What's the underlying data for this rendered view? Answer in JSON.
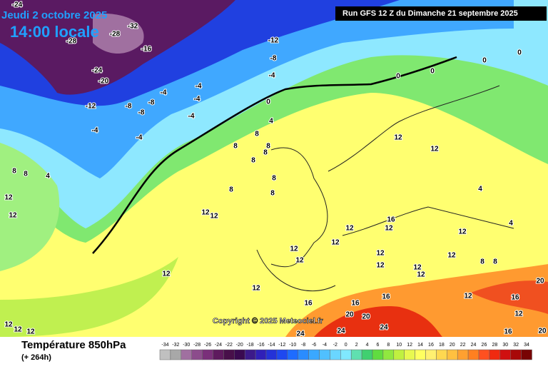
{
  "header": {
    "date": "Jeudi 2 octobre 2025",
    "time": "14:00 locale",
    "run": "Run GFS 12 Z du Dimanche 21 septembre 2025"
  },
  "copyright": "Copyright © 2025 Meteociel.fr",
  "footer": {
    "title": "Température 850hPa",
    "lead": "(+ 264h)"
  },
  "colorbar": {
    "ticks": [
      -34,
      -32,
      -30,
      -28,
      -26,
      -24,
      -22,
      -20,
      -18,
      -16,
      -14,
      -12,
      -10,
      -8,
      -6,
      -4,
      -2,
      0,
      2,
      4,
      6,
      8,
      10,
      12,
      14,
      16,
      18,
      20,
      22,
      24,
      26,
      28,
      30,
      32,
      34
    ],
    "colors": [
      "#c0c0c0",
      "#a8a8a8",
      "#a070a0",
      "#8c4c8c",
      "#7a2f7a",
      "#5e1a5e",
      "#48104a",
      "#3a0a50",
      "#3c1a8a",
      "#3020b8",
      "#2432d8",
      "#1e48f0",
      "#1e6cff",
      "#2a8cff",
      "#3aa8ff",
      "#50c0ff",
      "#6ad6ff",
      "#80e8ff",
      "#60e0b0",
      "#40d070",
      "#60dc40",
      "#90e840",
      "#c0f040",
      "#e8f850",
      "#ffff60",
      "#fff070",
      "#ffd850",
      "#ffc040",
      "#ffa030",
      "#ff8020",
      "#ff5020",
      "#f02a10",
      "#d01010",
      "#a80808",
      "#780404"
    ]
  },
  "contour_labels": [
    -24,
    -32,
    -28,
    -28,
    -16,
    -24,
    -20,
    -12,
    -8,
    -8,
    -8,
    -4,
    -4,
    -4,
    -4,
    -4,
    -4,
    -12,
    -8,
    -4,
    0,
    4,
    8,
    8,
    8,
    8,
    8,
    8,
    8,
    8,
    0,
    0,
    0,
    0,
    12,
    12,
    4,
    4,
    12,
    12,
    12,
    16,
    12,
    12,
    12,
    12,
    12,
    12,
    12,
    12,
    12,
    8,
    8,
    12,
    12,
    12,
    16,
    16,
    16,
    20,
    20,
    16,
    20,
    12,
    16,
    20,
    24,
    24,
    24,
    12,
    12,
    12,
    8,
    8,
    4,
    12,
    12,
    12
  ]
}
